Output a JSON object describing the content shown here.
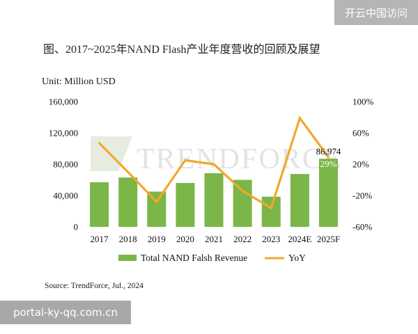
{
  "overlay": {
    "top_right_text": "开云中国访问",
    "bottom_left_text": "portal-ky-qq.com.cn"
  },
  "chart_data": {
    "type": "bar",
    "title": "图、2017~2025年NAND Flash产业年度营收的回顾及展望",
    "unit_label": "Unit: Million USD",
    "categories": [
      "2017",
      "2018",
      "2019",
      "2020",
      "2021",
      "2022",
      "2023",
      "2024E",
      "2025F"
    ],
    "series": [
      {
        "name": "Total NAND Falsh Revenue",
        "type": "bar",
        "axis": "left",
        "color": "#7ab648",
        "values": [
          57000,
          63000,
          45000,
          56000,
          68500,
          60000,
          38500,
          67500,
          86974
        ]
      },
      {
        "name": "YoY",
        "type": "line",
        "axis": "right",
        "color": "#f2a829",
        "values": [
          47,
          10,
          -28,
          25,
          20,
          -14,
          -36,
          79,
          29
        ]
      }
    ],
    "y_left": {
      "min": 0,
      "max": 160000,
      "ticks": [
        "0",
        "40,000",
        "80,000",
        "120,000",
        "160,000"
      ]
    },
    "y_right": {
      "min": -60,
      "max": 100,
      "ticks": [
        "-60%",
        "-20%",
        "20%",
        "60%",
        "100%"
      ]
    },
    "annotations": {
      "last_bar_value": "86,974",
      "last_yoy": "29%"
    },
    "watermark": "TRENDFORCE",
    "legend_placement": "bottom",
    "grid": false,
    "source": "Source: TrendForce, Jul., 2024"
  }
}
